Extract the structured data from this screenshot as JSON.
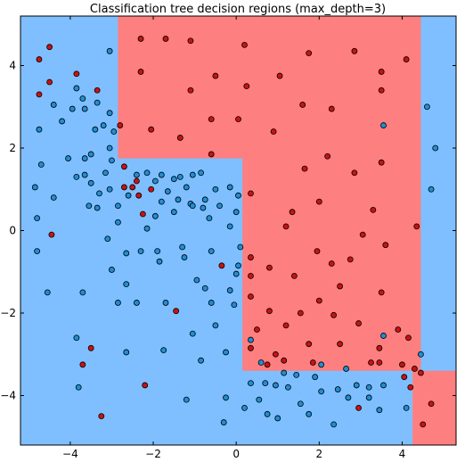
{
  "chart_data": {
    "type": "scatter",
    "title": "Classification tree decision regions (max_depth=3)",
    "xlabel": "",
    "ylabel": "",
    "xlim": [
      -5.2,
      5.3
    ],
    "ylim": [
      -5.2,
      5.2
    ],
    "xticks": [
      -4,
      -2,
      0,
      2,
      4
    ],
    "xtick_labels": [
      "−4",
      "−2",
      "0",
      "2",
      "4"
    ],
    "yticks": [
      -4,
      -2,
      0,
      2,
      4
    ],
    "ytick_labels": [
      "−4",
      "−2",
      "0",
      "2",
      "4"
    ],
    "grid": false,
    "colors": {
      "region_red": "#fe7f7f",
      "region_blue": "#7fbfff",
      "point_red": "#cc1111",
      "point_blue": "#1e8fd6",
      "point_edge": "#000000"
    },
    "regions": [
      {
        "class": "blue",
        "x": [
          -5.2,
          5.3
        ],
        "y": [
          -5.2,
          5.2
        ]
      },
      {
        "class": "red",
        "x": [
          -2.85,
          4.45
        ],
        "y": [
          1.75,
          5.2
        ]
      },
      {
        "class": "red",
        "x": [
          0.15,
          4.45
        ],
        "y": [
          -3.4,
          1.75
        ]
      },
      {
        "class": "red",
        "x": [
          4.25,
          5.3
        ],
        "y": [
          -5.2,
          -3.4
        ]
      }
    ],
    "series": [
      {
        "class": "red",
        "points": [
          [
            -2.3,
            4.65
          ],
          [
            -1.7,
            4.65
          ],
          [
            -1.1,
            4.6
          ],
          [
            0.2,
            4.5
          ],
          [
            -4.5,
            4.45
          ],
          [
            -4.75,
            4.15
          ],
          [
            -2.3,
            3.85
          ],
          [
            -0.5,
            3.75
          ],
          [
            1.05,
            3.75
          ],
          [
            1.75,
            4.3
          ],
          [
            2.85,
            4.35
          ],
          [
            4.1,
            4.15
          ],
          [
            -3.85,
            3.8
          ],
          [
            -3.35,
            3.4
          ],
          [
            -1.1,
            3.4
          ],
          [
            0.25,
            3.5
          ],
          [
            3.5,
            3.85
          ],
          [
            -4.75,
            3.3
          ],
          [
            -4.5,
            3.6
          ],
          [
            1.6,
            3.05
          ],
          [
            2.3,
            2.95
          ],
          [
            3.5,
            3.4
          ],
          [
            -0.6,
            2.7
          ],
          [
            0.05,
            2.7
          ],
          [
            -2.05,
            2.45
          ],
          [
            -2.8,
            2.55
          ],
          [
            -1.35,
            2.25
          ],
          [
            0.9,
            2.4
          ],
          [
            -0.6,
            1.85
          ],
          [
            2.2,
            1.8
          ],
          [
            1.65,
            1.5
          ],
          [
            2.85,
            1.4
          ],
          [
            3.5,
            1.65
          ],
          [
            -2.7,
            1.55
          ],
          [
            -2.4,
            1.2
          ],
          [
            -2.05,
            1.0
          ],
          [
            -2.5,
            1.05
          ],
          [
            -2.7,
            1.05
          ],
          [
            -2.35,
            0.85
          ],
          [
            -2.25,
            0.4
          ],
          [
            0.35,
            0.9
          ],
          [
            2.0,
            0.7
          ],
          [
            1.35,
            0.45
          ],
          [
            3.3,
            0.5
          ],
          [
            -4.45,
            -0.1
          ],
          [
            1.2,
            0.1
          ],
          [
            1.95,
            -0.5
          ],
          [
            2.3,
            -0.8
          ],
          [
            2.75,
            -0.7
          ],
          [
            3.05,
            -0.1
          ],
          [
            3.6,
            -0.35
          ],
          [
            4.35,
            0.1
          ],
          [
            0.35,
            -0.65
          ],
          [
            0.8,
            -0.9
          ],
          [
            -0.35,
            -0.85
          ],
          [
            0.35,
            -1.1
          ],
          [
            1.4,
            -1.1
          ],
          [
            2.5,
            -1.35
          ],
          [
            3.5,
            -1.5
          ],
          [
            0.35,
            -1.6
          ],
          [
            2.0,
            -1.7
          ],
          [
            -1.45,
            -1.95
          ],
          [
            0.8,
            -1.95
          ],
          [
            1.55,
            -2.0
          ],
          [
            2.35,
            -2.05
          ],
          [
            0.5,
            -2.4
          ],
          [
            1.2,
            -2.3
          ],
          [
            2.95,
            -2.25
          ],
          [
            3.9,
            -2.4
          ],
          [
            1.75,
            -2.75
          ],
          [
            2.5,
            -2.75
          ],
          [
            3.45,
            -2.85
          ],
          [
            0.35,
            -2.85
          ],
          [
            0.95,
            -3.0
          ],
          [
            1.15,
            -3.15
          ],
          [
            -3.5,
            -2.85
          ],
          [
            4.15,
            -2.6
          ],
          [
            0.75,
            -3.25
          ],
          [
            1.85,
            -3.2
          ],
          [
            3.25,
            -3.2
          ],
          [
            3.45,
            -3.2
          ],
          [
            4.0,
            -3.25
          ],
          [
            4.3,
            -3.35
          ],
          [
            -3.7,
            -3.25
          ],
          [
            -2.2,
            -3.75
          ],
          [
            4.05,
            -3.55
          ],
          [
            4.2,
            -3.8
          ],
          [
            4.45,
            -3.45
          ],
          [
            2.95,
            -4.3
          ],
          [
            -3.25,
            -4.5
          ],
          [
            4.5,
            -4.7
          ],
          [
            4.7,
            -4.2
          ]
        ]
      },
      {
        "class": "blue",
        "points": [
          [
            -3.05,
            4.35
          ],
          [
            -3.85,
            3.45
          ],
          [
            -3.7,
            3.2
          ],
          [
            -3.35,
            3.1
          ],
          [
            -4.4,
            3.05
          ],
          [
            -3.95,
            2.95
          ],
          [
            -3.65,
            2.95
          ],
          [
            -3.05,
            2.85
          ],
          [
            -4.2,
            2.65
          ],
          [
            -3.2,
            2.55
          ],
          [
            -2.95,
            2.4
          ],
          [
            -3.4,
            2.45
          ],
          [
            -4.75,
            2.45
          ],
          [
            -3.05,
            2.0
          ],
          [
            -3.5,
            1.85
          ],
          [
            -3.65,
            1.75
          ],
          [
            -4.05,
            1.75
          ],
          [
            -4.7,
            1.6
          ],
          [
            -3.0,
            1.7
          ],
          [
            -3.15,
            1.4
          ],
          [
            -3.65,
            1.35
          ],
          [
            -3.85,
            1.3
          ],
          [
            -3.5,
            1.15
          ],
          [
            -3.05,
            1.0
          ],
          [
            -3.3,
            0.9
          ],
          [
            -4.85,
            1.05
          ],
          [
            -4.4,
            0.8
          ],
          [
            -3.55,
            0.6
          ],
          [
            -3.35,
            0.55
          ],
          [
            -2.85,
            0.6
          ],
          [
            -2.6,
            0.85
          ],
          [
            -2.4,
            1.35
          ],
          [
            -2.15,
            1.4
          ],
          [
            -1.95,
            1.2
          ],
          [
            -1.8,
            1.35
          ],
          [
            -1.5,
            1.25
          ],
          [
            -1.35,
            1.3
          ],
          [
            -1.2,
            1.05
          ],
          [
            -1.05,
            1.35
          ],
          [
            -0.85,
            1.4
          ],
          [
            -1.65,
            0.95
          ],
          [
            -1.4,
            0.75
          ],
          [
            -1.1,
            0.65
          ],
          [
            -0.75,
            0.75
          ],
          [
            -0.5,
            1.0
          ],
          [
            -0.15,
            1.05
          ],
          [
            0.05,
            0.85
          ],
          [
            0.0,
            0.45
          ],
          [
            -0.4,
            0.6
          ],
          [
            -0.8,
            0.55
          ],
          [
            -1.05,
            0.6
          ],
          [
            -1.5,
            0.45
          ],
          [
            -1.8,
            0.7
          ],
          [
            -1.95,
            0.35
          ],
          [
            -2.85,
            0.2
          ],
          [
            -2.15,
            0.05
          ],
          [
            -4.8,
            0.3
          ],
          [
            -4.8,
            -0.5
          ],
          [
            -3.1,
            -0.2
          ],
          [
            -0.65,
            0.3
          ],
          [
            -0.15,
            0.1
          ],
          [
            -1.3,
            -0.4
          ],
          [
            -2.65,
            -0.55
          ],
          [
            -2.3,
            -0.5
          ],
          [
            -1.9,
            -0.5
          ],
          [
            -1.25,
            -0.65
          ],
          [
            -0.6,
            -0.5
          ],
          [
            0.1,
            -0.4
          ],
          [
            -1.85,
            -0.75
          ],
          [
            -3.0,
            -0.95
          ],
          [
            0.05,
            -0.85
          ],
          [
            -2.65,
            -1.3
          ],
          [
            -0.95,
            -1.2
          ],
          [
            0.0,
            -1.05
          ],
          [
            -4.55,
            -1.5
          ],
          [
            -3.7,
            -1.5
          ],
          [
            -0.75,
            -1.4
          ],
          [
            -0.15,
            -1.45
          ],
          [
            -0.6,
            -1.75
          ],
          [
            -2.85,
            -1.75
          ],
          [
            -2.4,
            -1.75
          ],
          [
            -1.7,
            -1.75
          ],
          [
            -0.05,
            -1.8
          ],
          [
            -0.5,
            -2.3
          ],
          [
            -1.05,
            -2.5
          ],
          [
            -3.85,
            -2.6
          ],
          [
            -1.75,
            -2.9
          ],
          [
            -0.25,
            -2.95
          ],
          [
            0.35,
            -2.65
          ],
          [
            -2.65,
            -2.95
          ],
          [
            -0.85,
            -3.15
          ],
          [
            0.6,
            -3.2
          ],
          [
            0.35,
            -3.7
          ],
          [
            1.15,
            -3.45
          ],
          [
            1.45,
            -3.5
          ],
          [
            1.9,
            -3.55
          ],
          [
            2.05,
            -3.25
          ],
          [
            2.65,
            -3.35
          ],
          [
            0.95,
            -3.75
          ],
          [
            0.7,
            -3.7
          ],
          [
            1.25,
            -3.8
          ],
          [
            2.05,
            -3.9
          ],
          [
            2.45,
            -3.85
          ],
          [
            2.9,
            -3.75
          ],
          [
            3.55,
            -3.75
          ],
          [
            3.2,
            -3.8
          ],
          [
            -3.8,
            -3.8
          ],
          [
            -1.2,
            -4.1
          ],
          [
            0.55,
            -4.1
          ],
          [
            1.55,
            -4.2
          ],
          [
            2.7,
            -4.05
          ],
          [
            3.2,
            -4.05
          ],
          [
            4.1,
            -4.3
          ],
          [
            0.2,
            -4.3
          ],
          [
            0.75,
            -4.45
          ],
          [
            1.0,
            -4.55
          ],
          [
            1.75,
            -4.45
          ],
          [
            2.35,
            -4.7
          ],
          [
            3.45,
            -4.35
          ],
          [
            -0.25,
            -4.05
          ],
          [
            -0.3,
            -4.65
          ],
          [
            3.55,
            -2.55
          ],
          [
            4.45,
            -3.0
          ],
          [
            4.7,
            1.0
          ],
          [
            4.8,
            2.0
          ],
          [
            4.6,
            3.0
          ],
          [
            3.55,
            2.55
          ]
        ]
      }
    ]
  }
}
